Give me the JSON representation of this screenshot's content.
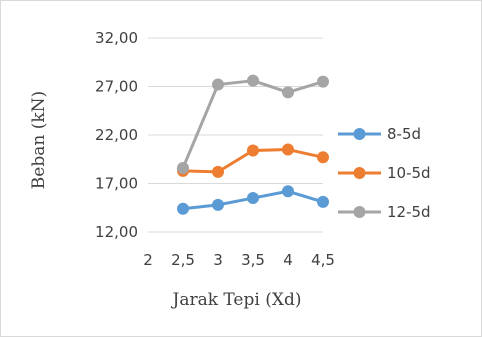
{
  "chart_data": {
    "type": "line",
    "title": "",
    "xlabel": "Jarak Tepi (Xd)",
    "ylabel": "Beban (kN)",
    "x_ticks": [
      "2",
      "2,5",
      "3",
      "3,5",
      "4",
      "4,5"
    ],
    "x": [
      2.5,
      3,
      3.5,
      4,
      4.5
    ],
    "xlim": [
      2,
      4.5
    ],
    "y_ticks": [
      "12,00",
      "17,00",
      "22,00",
      "27,00",
      "32,00"
    ],
    "ylim": [
      12,
      32
    ],
    "grid": "horizontal",
    "legend_position": "right",
    "series": [
      {
        "name": "8-5d",
        "color": "#5b9bd5",
        "values": [
          14.4,
          14.8,
          15.5,
          16.2,
          15.1
        ]
      },
      {
        "name": "10-5d",
        "color": "#ed7d31",
        "values": [
          18.3,
          18.2,
          20.4,
          20.5,
          19.7
        ]
      },
      {
        "name": "12-5d",
        "color": "#a5a5a5",
        "values": [
          18.6,
          27.2,
          27.6,
          26.4,
          27.5
        ]
      }
    ]
  }
}
